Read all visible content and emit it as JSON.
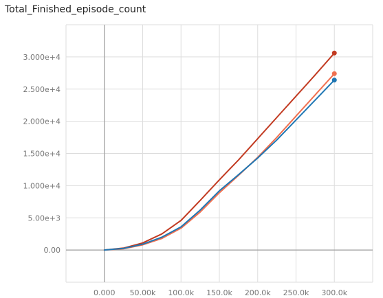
{
  "chart_data": {
    "type": "line",
    "title": "Total_Finished_episode_count",
    "xlabel": "",
    "ylabel": "",
    "xlim": [
      -50000,
      350000
    ],
    "ylim": [
      -5000,
      35000
    ],
    "grid": true,
    "x_ticks": [
      0,
      50000,
      100000,
      150000,
      200000,
      250000,
      300000
    ],
    "x_tick_labels": [
      "0.000",
      "50.00k",
      "100.0k",
      "150.0k",
      "200.0k",
      "250.0k",
      "300.0k"
    ],
    "y_ticks": [
      0,
      5000,
      10000,
      15000,
      20000,
      25000,
      30000
    ],
    "y_tick_labels": [
      "0.00",
      "5.00e+3",
      "1.000e+4",
      "1.500e+4",
      "2.000e+4",
      "2.500e+4",
      "3.000e+4"
    ],
    "series": [
      {
        "color": "#c23b22",
        "x": [
          0,
          25000,
          50000,
          75000,
          100000,
          125000,
          150000,
          175000,
          200000,
          225000,
          250000,
          275000,
          300000
        ],
        "y": [
          0,
          300,
          1100,
          2500,
          4600,
          7700,
          10900,
          14000,
          17300,
          20600,
          23900,
          27200,
          30600
        ]
      },
      {
        "color": "#f07050",
        "x": [
          0,
          25000,
          50000,
          75000,
          100000,
          125000,
          150000,
          175000,
          200000,
          225000,
          250000,
          275000,
          300000
        ],
        "y": [
          0,
          200,
          800,
          1800,
          3400,
          5900,
          8900,
          11600,
          14400,
          17500,
          20800,
          24100,
          27400
        ]
      },
      {
        "color": "#1f77b4",
        "x": [
          0,
          25000,
          50000,
          75000,
          100000,
          125000,
          150000,
          175000,
          200000,
          225000,
          250000,
          275000,
          300000
        ],
        "y": [
          0,
          250,
          900,
          2000,
          3600,
          6200,
          9200,
          11700,
          14300,
          17100,
          20200,
          23300,
          26400
        ]
      }
    ]
  }
}
